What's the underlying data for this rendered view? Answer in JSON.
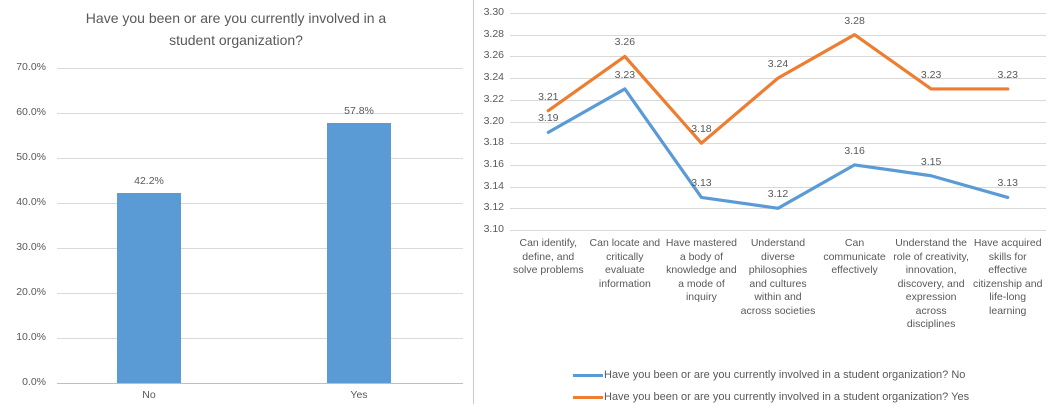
{
  "colors": {
    "series_blue": "#5B9BD5",
    "series_orange": "#ED7D31",
    "gridline": "#D9D9D9",
    "axis_line": "#BFBFBF",
    "text": "#595959"
  },
  "chart_data": [
    {
      "type": "bar",
      "title": "Have you been or are you currently involved in a student organization?",
      "categories": [
        "No",
        "Yes"
      ],
      "values": [
        42.2,
        57.8
      ],
      "value_labels": [
        "42.2%",
        "57.8%"
      ],
      "ylabel": "",
      "xlabel": "",
      "ylim": [
        0,
        70
      ],
      "ytick_step": 10,
      "yticks": [
        "0.0%",
        "10.0%",
        "20.0%",
        "30.0%",
        "40.0%",
        "50.0%",
        "60.0%",
        "70.0%"
      ],
      "grid": true,
      "legend_position": "none",
      "bar_color": "#5B9BD5"
    },
    {
      "type": "line",
      "title": "",
      "categories": [
        "Can identify, define, and solve problems",
        "Can locate and critically evaluate information",
        "Have mastered a body of knowledge and a mode of inquiry",
        "Understand diverse philosophies and cultures within and across societies",
        "Can communicate effectively",
        "Understand the role of creativity, innovation, discovery, and expression across disciplines",
        "Have acquired skills for effective citizenship and life-long learning"
      ],
      "series": [
        {
          "name": "Have you been or are you currently involved in a student organization? No",
          "color": "#5B9BD5",
          "values": [
            3.19,
            3.23,
            3.13,
            3.12,
            3.16,
            3.15,
            3.13
          ],
          "value_labels": [
            "3.19",
            "3.23",
            "3.13",
            "3.12",
            "3.16",
            "3.15",
            "3.13"
          ]
        },
        {
          "name": "Have you been or are you currently involved in a student organization? Yes",
          "color": "#ED7D31",
          "values": [
            3.21,
            3.26,
            3.18,
            3.24,
            3.28,
            3.23,
            3.23
          ],
          "value_labels": [
            "3.21",
            "3.26",
            "3.18",
            "3.24",
            "3.28",
            "3.23",
            "3.23"
          ]
        }
      ],
      "ylim": [
        3.1,
        3.3
      ],
      "ytick_step": 0.02,
      "yticks": [
        "3.10",
        "3.12",
        "3.14",
        "3.16",
        "3.18",
        "3.20",
        "3.22",
        "3.24",
        "3.26",
        "3.28",
        "3.30"
      ],
      "grid": true,
      "legend_position": "bottom"
    }
  ]
}
